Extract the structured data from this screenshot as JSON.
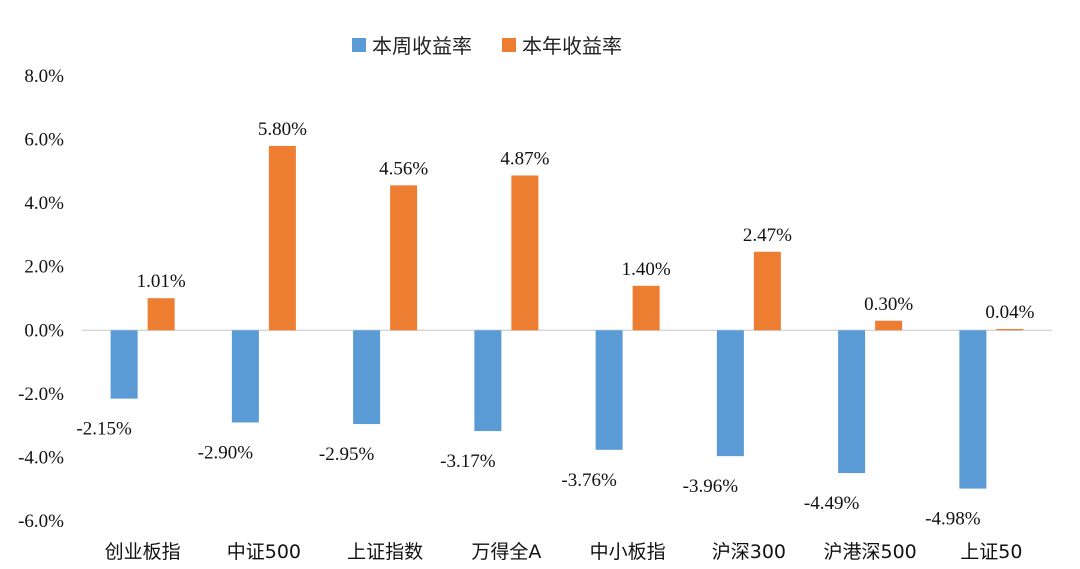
{
  "chart_data": {
    "type": "bar",
    "categories": [
      "创业板指",
      "中证500",
      "上证指数",
      "万得全A",
      "中小板指",
      "沪深300",
      "沪港深500",
      "上证50"
    ],
    "series": [
      {
        "name": "本周收益率",
        "color": "#5B9BD5",
        "values": [
          -2.15,
          -2.9,
          -2.95,
          -3.17,
          -3.76,
          -3.96,
          -4.49,
          -4.98
        ],
        "labels": [
          "-2.15%",
          "-2.90%",
          "-2.95%",
          "-3.17%",
          "-3.76%",
          "-3.96%",
          "-4.49%",
          "-4.98%"
        ]
      },
      {
        "name": "本年收益率",
        "color": "#ED7D31",
        "values": [
          1.01,
          5.8,
          4.56,
          4.87,
          1.4,
          2.47,
          0.3,
          0.04
        ],
        "labels": [
          "1.01%",
          "5.80%",
          "4.56%",
          "4.87%",
          "1.40%",
          "2.47%",
          "0.30%",
          "0.04%"
        ]
      }
    ],
    "yticks": [
      "8.0%",
      "6.0%",
      "4.0%",
      "2.0%",
      "0.0%",
      "-2.0%",
      "-4.0%",
      "-6.0%"
    ],
    "ylim": [
      -6,
      8
    ],
    "legend_position": "top",
    "grid": false
  }
}
